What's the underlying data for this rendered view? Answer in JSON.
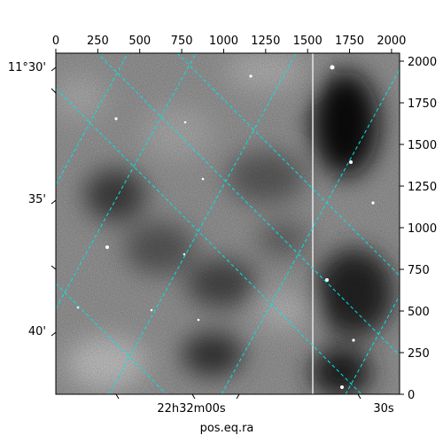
{
  "chart_data": {
    "type": "heatmap",
    "title": "",
    "xlabel": "pos.eq.ra",
    "ylabel": "",
    "pixel_axes": {
      "x": {
        "ticks": [
          0,
          250,
          500,
          750,
          1000,
          1250,
          1500,
          1750,
          2000
        ],
        "labels": [
          "0",
          "250",
          "500",
          "750",
          "1000",
          "1250",
          "1500",
          "1750",
          "2000"
        ],
        "lim": [
          0,
          2048
        ]
      },
      "y": {
        "ticks": [
          0,
          250,
          500,
          750,
          1000,
          1250,
          1500,
          1750,
          2000
        ],
        "labels": [
          "0",
          "250",
          "500",
          "750",
          "1000",
          "1250",
          "1500",
          "1750",
          "2000"
        ],
        "lim": [
          0,
          2048
        ]
      }
    },
    "world_axes": {
      "ra_labels": [
        "22h32m00s",
        "30s"
      ],
      "dec_labels": [
        "11°30'",
        "35'",
        "40'"
      ]
    },
    "grid": true,
    "grid_color": "#00e5e5",
    "colormap": "gray_r"
  }
}
